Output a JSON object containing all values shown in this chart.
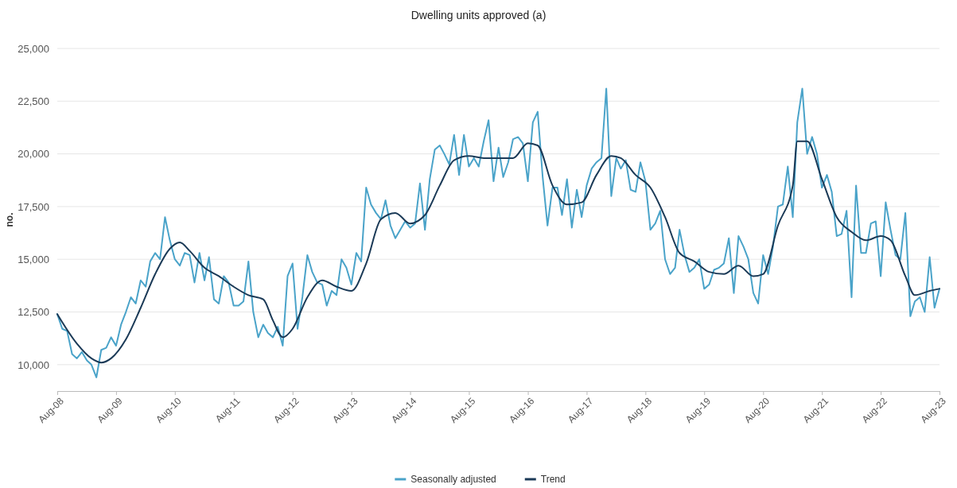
{
  "chart_data": {
    "type": "line",
    "title": "Dwelling units approved (a)",
    "ylabel": "no.",
    "xlim": [
      "2008-08",
      "2023-08"
    ],
    "xticks": [
      {
        "value": "2008-08",
        "label": "Aug-08"
      },
      {
        "value": "2009-08",
        "label": "Aug-09"
      },
      {
        "value": "2010-08",
        "label": "Aug-10"
      },
      {
        "value": "2011-08",
        "label": "Aug-11"
      },
      {
        "value": "2012-08",
        "label": "Aug-12"
      },
      {
        "value": "2013-08",
        "label": "Aug-13"
      },
      {
        "value": "2014-08",
        "label": "Aug-14"
      },
      {
        "value": "2015-08",
        "label": "Aug-15"
      },
      {
        "value": "2016-08",
        "label": "Aug-16"
      },
      {
        "value": "2017-08",
        "label": "Aug-17"
      },
      {
        "value": "2018-08",
        "label": "Aug-18"
      },
      {
        "value": "2019-08",
        "label": "Aug-19"
      },
      {
        "value": "2020-08",
        "label": "Aug-20"
      },
      {
        "value": "2021-08",
        "label": "Aug-21"
      },
      {
        "value": "2022-08",
        "label": "Aug-22"
      },
      {
        "value": "2023-08",
        "label": "Aug-23"
      }
    ],
    "ylim": [
      8750,
      25000
    ],
    "yticks": [
      {
        "value": 10000,
        "label": "10,000"
      },
      {
        "value": 12500,
        "label": "12,500"
      },
      {
        "value": 15000,
        "label": "15,000"
      },
      {
        "value": 17500,
        "label": "17,500"
      },
      {
        "value": 20000,
        "label": "20,000"
      },
      {
        "value": 22500,
        "label": "22,500"
      },
      {
        "value": 25000,
        "label": "25,000"
      }
    ],
    "grid": "y",
    "legend": "bottom",
    "marker": "none",
    "line_style": "solid",
    "series": [
      {
        "name": "Seasonally adjusted",
        "color": "#4aa3c9",
        "x": [
          "2008-08",
          "2008-09",
          "2008-10",
          "2008-11",
          "2008-12",
          "2009-01",
          "2009-02",
          "2009-03",
          "2009-04",
          "2009-05",
          "2009-06",
          "2009-07",
          "2009-08",
          "2009-09",
          "2009-10",
          "2009-11",
          "2009-12",
          "2010-01",
          "2010-02",
          "2010-03",
          "2010-04",
          "2010-05",
          "2010-06",
          "2010-07",
          "2010-08",
          "2010-09",
          "2010-10",
          "2010-11",
          "2010-12",
          "2011-01",
          "2011-02",
          "2011-03",
          "2011-04",
          "2011-05",
          "2011-06",
          "2011-07",
          "2011-08",
          "2011-09",
          "2011-10",
          "2011-11",
          "2011-12",
          "2012-01",
          "2012-02",
          "2012-03",
          "2012-04",
          "2012-05",
          "2012-06",
          "2012-07",
          "2012-08",
          "2012-09",
          "2012-10",
          "2012-11",
          "2012-12",
          "2013-01",
          "2013-02",
          "2013-03",
          "2013-04",
          "2013-05",
          "2013-06",
          "2013-07",
          "2013-08",
          "2013-09",
          "2013-10",
          "2013-11",
          "2013-12",
          "2014-01",
          "2014-02",
          "2014-03",
          "2014-04",
          "2014-05",
          "2014-06",
          "2014-07",
          "2014-08",
          "2014-09",
          "2014-10",
          "2014-11",
          "2014-12",
          "2015-01",
          "2015-02",
          "2015-03",
          "2015-04",
          "2015-05",
          "2015-06",
          "2015-07",
          "2015-08",
          "2015-09",
          "2015-10",
          "2015-11",
          "2015-12",
          "2016-01",
          "2016-02",
          "2016-03",
          "2016-04",
          "2016-05",
          "2016-06",
          "2016-07",
          "2016-08",
          "2016-09",
          "2016-10",
          "2016-11",
          "2016-12",
          "2017-01",
          "2017-02",
          "2017-03",
          "2017-04",
          "2017-05",
          "2017-06",
          "2017-07",
          "2017-08",
          "2017-09",
          "2017-10",
          "2017-11",
          "2017-12",
          "2018-01",
          "2018-02",
          "2018-03",
          "2018-04",
          "2018-05",
          "2018-06",
          "2018-07",
          "2018-08",
          "2018-09",
          "2018-10",
          "2018-11",
          "2018-12",
          "2019-01",
          "2019-02",
          "2019-03",
          "2019-04",
          "2019-05",
          "2019-06",
          "2019-07",
          "2019-08",
          "2019-09",
          "2019-10",
          "2019-11",
          "2019-12",
          "2020-01",
          "2020-02",
          "2020-03",
          "2020-04",
          "2020-05",
          "2020-06",
          "2020-07",
          "2020-08",
          "2020-09",
          "2020-10",
          "2020-11",
          "2020-12",
          "2021-01",
          "2021-02",
          "2021-03",
          "2021-04",
          "2021-05",
          "2021-06",
          "2021-07",
          "2021-08",
          "2021-09",
          "2021-10",
          "2021-11",
          "2021-12",
          "2022-01",
          "2022-02",
          "2022-03",
          "2022-04",
          "2022-05",
          "2022-06",
          "2022-07",
          "2022-08",
          "2022-09",
          "2022-10",
          "2022-11",
          "2022-12",
          "2023-01",
          "2023-02",
          "2023-03",
          "2023-04",
          "2023-05",
          "2023-06",
          "2023-07",
          "2023-08"
        ],
        "values": [
          12400,
          11700,
          11600,
          10500,
          10300,
          10600,
          10200,
          10000,
          9400,
          10700,
          10800,
          11300,
          10900,
          11900,
          12500,
          13200,
          12900,
          14000,
          13700,
          14900,
          15300,
          15000,
          17000,
          15900,
          15000,
          14700,
          15300,
          15200,
          13900,
          15300,
          14000,
          15100,
          13100,
          12900,
          14200,
          13900,
          12800,
          12800,
          13000,
          14900,
          12500,
          11300,
          11900,
          11500,
          11300,
          11800,
          10900,
          14200,
          14800,
          11700,
          13200,
          15200,
          14400,
          13900,
          13800,
          12800,
          13500,
          13300,
          15000,
          14600,
          13800,
          15300,
          14900,
          18400,
          17600,
          17200,
          16900,
          17800,
          16600,
          16000,
          16400,
          16800,
          16500,
          16700,
          18600,
          16400,
          18800,
          20200,
          20400,
          20000,
          19500,
          20900,
          19000,
          20900,
          19400,
          19800,
          19400,
          20600,
          21600,
          18700,
          20300,
          18900,
          19600,
          20700,
          20800,
          20500,
          18700,
          21500,
          22000,
          18900,
          16600,
          18400,
          18400,
          17100,
          18800,
          16500,
          18300,
          17000,
          18500,
          19300,
          19600,
          19800,
          23100,
          18000,
          19800,
          19300,
          19700,
          18300,
          18200,
          19600,
          18700,
          16400,
          16700,
          17300,
          15000,
          14300,
          14600,
          16400,
          15200,
          14400,
          14600,
          15000,
          13600,
          13800,
          14500,
          14600,
          14800,
          16000,
          13400,
          16100,
          15600,
          15000,
          13400,
          12900,
          15200,
          14300,
          15600,
          17500,
          17600,
          19400,
          17000,
          21500,
          23100,
          20000,
          20800,
          20000,
          18400,
          19000,
          18200,
          16100,
          16200,
          17300,
          13200,
          18500,
          15300,
          15300,
          16700,
          16800,
          14200,
          17700,
          16400,
          15200,
          15000,
          17200,
          12300,
          13000,
          13200,
          12500,
          15100,
          12700,
          13600
        ]
      },
      {
        "name": "Trend",
        "color": "#1b3a57",
        "x": [
          "2008-08",
          "2008-12",
          "2009-03",
          "2009-05",
          "2009-07",
          "2009-10",
          "2010-01",
          "2010-04",
          "2010-07",
          "2010-09",
          "2010-11",
          "2011-02",
          "2011-05",
          "2011-08",
          "2011-11",
          "2012-02",
          "2012-04",
          "2012-06",
          "2012-08",
          "2012-11",
          "2013-02",
          "2013-05",
          "2013-08",
          "2013-11",
          "2014-02",
          "2014-05",
          "2014-08",
          "2014-11",
          "2015-02",
          "2015-05",
          "2015-08",
          "2015-11",
          "2016-02",
          "2016-05",
          "2016-08",
          "2016-10",
          "2017-01",
          "2017-04",
          "2017-07",
          "2017-10",
          "2018-01",
          "2018-03",
          "2018-06",
          "2018-09",
          "2018-12",
          "2019-03",
          "2019-06",
          "2019-09",
          "2019-12",
          "2020-03",
          "2020-06",
          "2020-08",
          "2020-11",
          "2021-02",
          "2021-03",
          "2021-05",
          "2021-08",
          "2021-11",
          "2022-02",
          "2022-05",
          "2022-08",
          "2022-10",
          "2023-01",
          "2023-03",
          "2023-06",
          "2023-08"
        ],
        "values": [
          12400,
          11000,
          10300,
          10100,
          10300,
          11200,
          12700,
          14300,
          15500,
          15800,
          15400,
          14600,
          14200,
          13700,
          13300,
          13100,
          12100,
          11300,
          11700,
          13200,
          14000,
          13700,
          13500,
          14800,
          16900,
          17200,
          16700,
          17100,
          18500,
          19700,
          19900,
          19800,
          19800,
          19800,
          20500,
          20400,
          18500,
          17600,
          17700,
          19000,
          19900,
          19800,
          19000,
          18400,
          17000,
          15300,
          14900,
          14400,
          14300,
          14700,
          14200,
          14300,
          16600,
          18500,
          20600,
          20600,
          18800,
          17000,
          16300,
          15900,
          16100,
          15900,
          14200,
          13300,
          13500,
          13600
        ]
      }
    ]
  }
}
